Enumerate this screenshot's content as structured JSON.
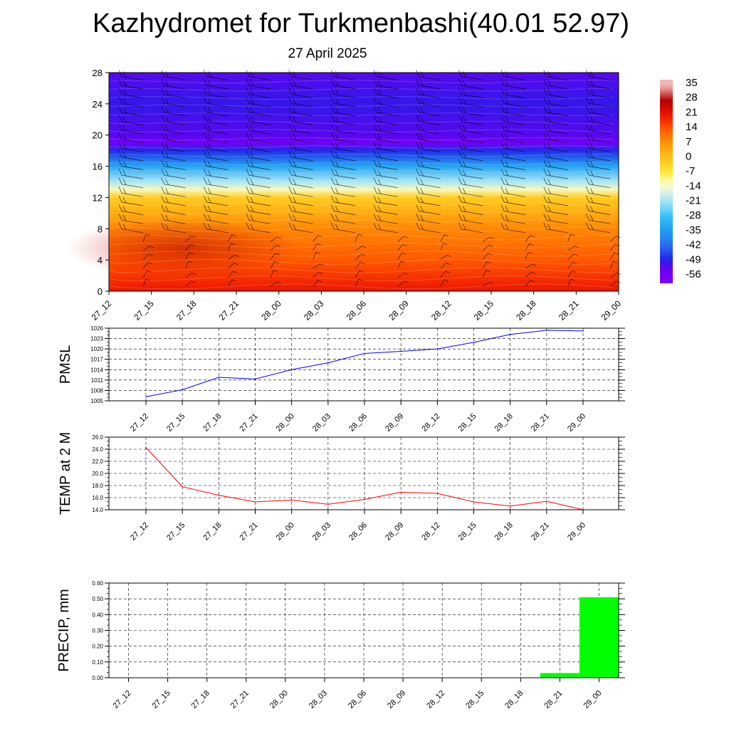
{
  "title": "Kazhydromet for Turkmenbashi(40.01 52.97)",
  "subtitle": "27 April 2025",
  "time_labels": [
    "27_12",
    "27_15",
    "27_18",
    "27_21",
    "28_00",
    "28_03",
    "28_06",
    "28_09",
    "28_12",
    "28_15",
    "28_18",
    "28_21",
    "29_00"
  ],
  "chart_data": [
    {
      "type": "heatmap",
      "name": "temperature-height-section",
      "x": [
        "27_12",
        "27_15",
        "27_18",
        "27_21",
        "28_00",
        "28_03",
        "28_06",
        "28_09",
        "28_12",
        "28_15",
        "28_18",
        "28_21",
        "29_00"
      ],
      "y_ticks": [
        0,
        4,
        8,
        12,
        16,
        20,
        24,
        28
      ],
      "ylim": [
        0,
        28
      ],
      "colorbar_labels": [
        "35",
        "28",
        "21",
        "14",
        "7",
        "0",
        "-7",
        "-14",
        "-21",
        "-28",
        "-35",
        "-42",
        "-49",
        "-56"
      ],
      "temperature_profile": [
        {
          "h": 0,
          "t": 21
        },
        {
          "h": 4,
          "t": 14
        },
        {
          "h": 8,
          "t": 9
        },
        {
          "h": 10,
          "t": 4
        },
        {
          "h": 12,
          "t": -2
        },
        {
          "h": 13,
          "t": -12
        },
        {
          "h": 14,
          "t": -20
        },
        {
          "h": 16,
          "t": -33
        },
        {
          "h": 18,
          "t": -48
        },
        {
          "h": 19,
          "t": -56
        },
        {
          "h": 20,
          "t": -52
        },
        {
          "h": 24,
          "t": -50
        },
        {
          "h": 28,
          "t": -52
        }
      ],
      "has_wind_barbs": true
    },
    {
      "type": "line",
      "name": "PMSL",
      "ylabel": "PMSL",
      "x": [
        "27_12",
        "27_15",
        "27_18",
        "27_21",
        "28_00",
        "28_03",
        "28_06",
        "28_09",
        "28_12",
        "28_15",
        "28_18",
        "28_21",
        "29_00"
      ],
      "values": [
        1006.2,
        1008.2,
        1011.8,
        1011.3,
        1014.0,
        1016.0,
        1018.7,
        1019.3,
        1020.0,
        1021.9,
        1024.2,
        1025.4,
        1025.2
      ],
      "ylim": [
        1005,
        1026
      ],
      "y_ticks": [
        1005,
        1008,
        1011,
        1014,
        1017,
        1020,
        1023,
        1026
      ],
      "y_tick_labels": [
        "1005",
        "1008",
        "1011",
        "1014",
        "1017",
        "1020",
        "1023",
        "1026"
      ],
      "color": "#0000ff"
    },
    {
      "type": "line",
      "name": "TEMP at 2 M",
      "ylabel": "TEMP at 2 M",
      "x": [
        "27_12",
        "27_15",
        "27_18",
        "27_21",
        "28_00",
        "28_03",
        "28_06",
        "28_09",
        "28_12",
        "28_15",
        "28_18",
        "28_21",
        "29_00"
      ],
      "values": [
        24.3,
        17.8,
        16.4,
        15.3,
        15.6,
        14.9,
        15.7,
        16.9,
        16.7,
        15.3,
        14.6,
        15.4,
        14.0
      ],
      "ylim": [
        14,
        26
      ],
      "y_ticks": [
        14,
        16,
        18,
        20,
        22,
        24,
        26
      ],
      "y_tick_labels": [
        "14.0",
        "16.0",
        "18.0",
        "20.0",
        "22.0",
        "24.0",
        "26.0"
      ],
      "color": "#ff0000"
    },
    {
      "type": "bar",
      "name": "PRECIP, mm",
      "ylabel": "PRECIP, mm",
      "categories": [
        "27_12",
        "27_15",
        "27_18",
        "27_21",
        "28_00",
        "28_03",
        "28_06",
        "28_09",
        "28_12",
        "28_15",
        "28_18",
        "28_21",
        "29_00"
      ],
      "values": [
        0,
        0,
        0,
        0,
        0,
        0,
        0,
        0,
        0,
        0,
        0,
        0.03,
        0.51
      ],
      "ylim": [
        0,
        0.6
      ],
      "y_ticks": [
        0,
        0.1,
        0.2,
        0.3,
        0.4,
        0.5,
        0.6
      ],
      "y_tick_labels": [
        "0.00",
        "0.10",
        "0.20",
        "0.30",
        "0.40",
        "0.50",
        "0.60"
      ],
      "color": "#00ff00"
    }
  ]
}
